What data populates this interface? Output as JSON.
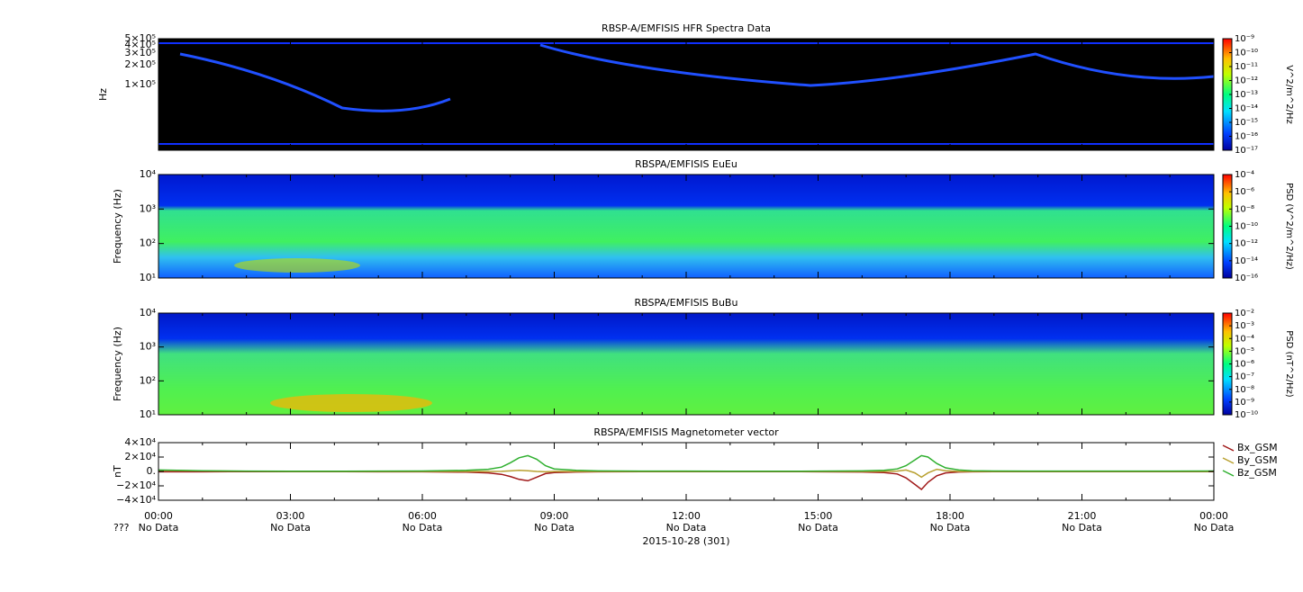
{
  "chart_data": [
    {
      "type": "spectrogram",
      "title": "RBSP-A/EMFISIS  HFR Spectra Data",
      "ylabel": "Hz",
      "ylog": true,
      "ylim": [
        10000,
        500000
      ],
      "yticks": [
        {
          "value": 100000,
          "label": "1×10⁵"
        },
        {
          "value": 200000,
          "label": "2×10⁵"
        },
        {
          "value": 300000,
          "label": "3×10⁵"
        },
        {
          "value": 400000,
          "label": "4×10⁵"
        },
        {
          "value": 500000,
          "label": "5×10⁵"
        }
      ],
      "zlabel": "V^2/m^2/Hz",
      "zlog": true,
      "zlim": [
        1e-17,
        1e-09
      ],
      "zticks": [
        {
          "value": 1e-09,
          "label": "10⁻⁹"
        },
        {
          "value": 1e-10,
          "label": "10⁻¹⁰"
        },
        {
          "value": 1e-11,
          "label": "10⁻¹¹"
        },
        {
          "value": 1e-12,
          "label": "10⁻¹²"
        },
        {
          "value": 1e-13,
          "label": "10⁻¹³"
        },
        {
          "value": 1e-14,
          "label": "10⁻¹⁴"
        },
        {
          "value": 1e-15,
          "label": "10⁻¹⁵"
        },
        {
          "value": 1e-16,
          "label": "10⁻¹⁶"
        },
        {
          "value": 1e-17,
          "label": "10⁻¹⁷"
        }
      ]
    },
    {
      "type": "spectrogram",
      "title": "RBSPA/EMFISIS  EuEu",
      "ylabel": "Frequency (Hz)",
      "ylog": true,
      "ylim": [
        10,
        10000
      ],
      "yticks": [
        {
          "value": 10,
          "label": "10¹"
        },
        {
          "value": 100,
          "label": "10²"
        },
        {
          "value": 1000,
          "label": "10³"
        },
        {
          "value": 10000,
          "label": "10⁴"
        }
      ],
      "zlabel": "PSD (V^2/m^2/Hz)",
      "zlog": true,
      "zlim": [
        1e-16,
        0.0001
      ],
      "zticks": [
        {
          "value": 0.0001,
          "label": "10⁻⁴"
        },
        {
          "value": 1e-06,
          "label": "10⁻⁶"
        },
        {
          "value": 1e-08,
          "label": "10⁻⁸"
        },
        {
          "value": 1e-10,
          "label": "10⁻¹⁰"
        },
        {
          "value": 1e-12,
          "label": "10⁻¹²"
        },
        {
          "value": 1e-14,
          "label": "10⁻¹⁴"
        },
        {
          "value": 1e-16,
          "label": "10⁻¹⁶"
        }
      ]
    },
    {
      "type": "spectrogram",
      "title": "RBSPA/EMFISIS  BuBu",
      "ylabel": "Frequency (Hz)",
      "ylog": true,
      "ylim": [
        10,
        10000
      ],
      "yticks": [
        {
          "value": 10,
          "label": "10¹"
        },
        {
          "value": 100,
          "label": "10²"
        },
        {
          "value": 1000,
          "label": "10³"
        },
        {
          "value": 10000,
          "label": "10⁴"
        }
      ],
      "zlabel": "PSD (nT^2/Hz)",
      "zlog": true,
      "zlim": [
        1e-10,
        0.01
      ],
      "zticks": [
        {
          "value": 0.01,
          "label": "10⁻²"
        },
        {
          "value": 0.001,
          "label": "10⁻³"
        },
        {
          "value": 0.0001,
          "label": "10⁻⁴"
        },
        {
          "value": 1e-05,
          "label": "10⁻⁵"
        },
        {
          "value": 1e-06,
          "label": "10⁻⁶"
        },
        {
          "value": 1e-07,
          "label": "10⁻⁷"
        },
        {
          "value": 1e-08,
          "label": "10⁻⁸"
        },
        {
          "value": 1e-09,
          "label": "10⁻⁹"
        },
        {
          "value": 1e-10,
          "label": "10⁻¹⁰"
        }
      ]
    },
    {
      "type": "line",
      "title": "RBSPA/EMFISIS  Magnetometer vector",
      "ylabel": "nT",
      "ylim": [
        -40000,
        40000
      ],
      "yticks": [
        {
          "value": 40000,
          "label": "4×10⁴"
        },
        {
          "value": 20000,
          "label": "2×10⁴"
        },
        {
          "value": 0,
          "label": "0."
        },
        {
          "value": -20000,
          "label": "−2×10⁴"
        },
        {
          "value": -40000,
          "label": "−4×10⁴"
        }
      ],
      "xlim": [
        0,
        24
      ],
      "xticks": [
        {
          "value": 0,
          "label": "00:00"
        },
        {
          "value": 3,
          "label": "03:00"
        },
        {
          "value": 6,
          "label": "06:00"
        },
        {
          "value": 9,
          "label": "09:00"
        },
        {
          "value": 12,
          "label": "12:00"
        },
        {
          "value": 15,
          "label": "15:00"
        },
        {
          "value": 18,
          "label": "18:00"
        },
        {
          "value": 21,
          "label": "21:00"
        },
        {
          "value": 24,
          "label": "00:00"
        }
      ],
      "xtick_sublabels": [
        "No Data",
        "No Data",
        "No Data",
        "No Data",
        "No Data",
        "No Data",
        "No Data",
        "No Data",
        "No Data"
      ],
      "sublabel_title": "???",
      "xlabel": "2015-10-28 (301)",
      "x": [
        0,
        1,
        2,
        3,
        4,
        5,
        6,
        7,
        7.5,
        7.8,
        8.0,
        8.2,
        8.4,
        8.6,
        8.8,
        9.0,
        9.5,
        10,
        11,
        12,
        13,
        14,
        15,
        16,
        16.5,
        16.8,
        17.0,
        17.2,
        17.35,
        17.5,
        17.7,
        17.9,
        18.2,
        18.5,
        19,
        20,
        21,
        22,
        23,
        24
      ],
      "series": [
        {
          "name": "Bx_GSM",
          "color": "#a01818",
          "values": [
            -500,
            -400,
            -300,
            -300,
            -300,
            -400,
            -500,
            -1000,
            -2000,
            -4000,
            -7000,
            -11000,
            -13000,
            -8000,
            -3000,
            -1500,
            -800,
            -500,
            -300,
            -300,
            -300,
            -300,
            -400,
            -800,
            -1500,
            -3500,
            -9000,
            -18000,
            -25000,
            -15000,
            -6000,
            -2000,
            -800,
            -500,
            -300,
            -300,
            -300,
            -300,
            -300,
            -300
          ]
        },
        {
          "name": "By_GSM",
          "color": "#b8a030",
          "values": [
            1500,
            800,
            300,
            0,
            0,
            0,
            0,
            0,
            0,
            200,
            800,
            1500,
            1000,
            0,
            -500,
            0,
            0,
            0,
            0,
            0,
            0,
            0,
            0,
            0,
            0,
            500,
            2000,
            -2000,
            -8000,
            -2000,
            3000,
            1000,
            0,
            0,
            0,
            0,
            0,
            0,
            0,
            0
          ]
        },
        {
          "name": "Bz_GSM",
          "color": "#30b030",
          "values": [
            2000,
            1000,
            500,
            300,
            300,
            400,
            600,
            1500,
            3000,
            6000,
            12000,
            19000,
            22000,
            17000,
            8000,
            3500,
            1500,
            800,
            500,
            400,
            300,
            300,
            400,
            800,
            1500,
            3500,
            8000,
            16000,
            22000,
            20000,
            11000,
            5000,
            2000,
            1000,
            600,
            500,
            400,
            400,
            500,
            600
          ]
        }
      ]
    }
  ]
}
